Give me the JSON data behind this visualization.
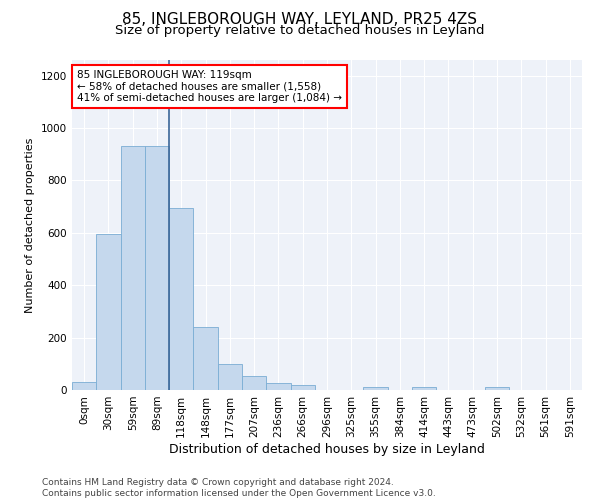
{
  "title1": "85, INGLEBOROUGH WAY, LEYLAND, PR25 4ZS",
  "title2": "Size of property relative to detached houses in Leyland",
  "xlabel": "Distribution of detached houses by size in Leyland",
  "ylabel": "Number of detached properties",
  "bar_color": "#c5d8ed",
  "bar_edge_color": "#7aadd4",
  "background_color": "#eef2f9",
  "categories": [
    "0sqm",
    "30sqm",
    "59sqm",
    "89sqm",
    "118sqm",
    "148sqm",
    "177sqm",
    "207sqm",
    "236sqm",
    "266sqm",
    "296sqm",
    "325sqm",
    "355sqm",
    "384sqm",
    "414sqm",
    "443sqm",
    "473sqm",
    "502sqm",
    "532sqm",
    "561sqm",
    "591sqm"
  ],
  "values": [
    30,
    595,
    930,
    930,
    695,
    242,
    100,
    52,
    26,
    18,
    0,
    0,
    13,
    0,
    13,
    0,
    0,
    13,
    0,
    0,
    0
  ],
  "ylim": [
    0,
    1260
  ],
  "yticks": [
    0,
    200,
    400,
    600,
    800,
    1000,
    1200
  ],
  "vline_bin_index": 4,
  "annotation_text": "85 INGLEBOROUGH WAY: 119sqm\n← 58% of detached houses are smaller (1,558)\n41% of semi-detached houses are larger (1,084) →",
  "vline_color": "#3a6698",
  "footer_text": "Contains HM Land Registry data © Crown copyright and database right 2024.\nContains public sector information licensed under the Open Government Licence v3.0.",
  "title1_fontsize": 11,
  "title2_fontsize": 9.5,
  "xlabel_fontsize": 9,
  "ylabel_fontsize": 8,
  "tick_fontsize": 7.5,
  "footer_fontsize": 6.5
}
